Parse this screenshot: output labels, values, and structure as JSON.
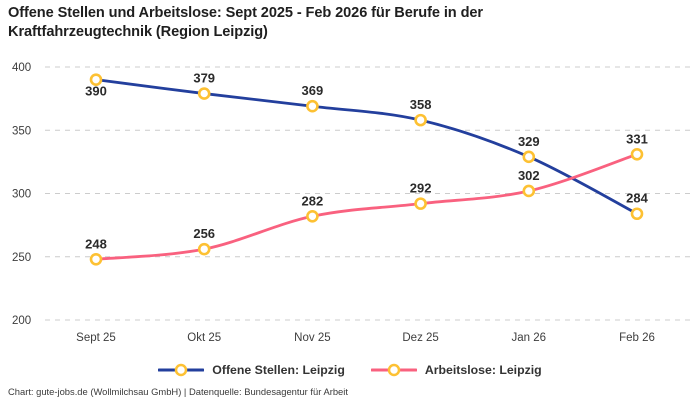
{
  "header": {
    "title": "Offene Stellen und Arbeitslose: Sept 2025 - Feb 2026 für Berufe in der Kraftfahrzeugtechnik (Region Leipzig)"
  },
  "footer": {
    "text": "Chart: gute-jobs.de (Wollmilchsau GmbH) | Datenquelle: Bundesagentur für Arbeit"
  },
  "legend": {
    "items": [
      {
        "label": "Offene Stellen: Leipzig",
        "color": "#233f9d"
      },
      {
        "label": "Arbeitslose: Leipzig",
        "color": "#f9617f"
      }
    ]
  },
  "chart_data": {
    "type": "line",
    "title": "Offene Stellen und Arbeitslose: Sept 2025 - Feb 2026 für Berufe in der Kraftfahrzeugtechnik (Region Leipzig)",
    "categories": [
      "Sept 25",
      "Okt 25",
      "Nov 25",
      "Dez 25",
      "Jan 26",
      "Feb 26"
    ],
    "series": [
      {
        "name": "Offene Stellen: Leipzig",
        "color": "#233f9d",
        "values": [
          390,
          379,
          369,
          358,
          329,
          284
        ],
        "label_positions": [
          "below",
          "above",
          "above",
          "above",
          "above",
          "above"
        ]
      },
      {
        "name": "Arbeitslose: Leipzig",
        "color": "#f9617f",
        "values": [
          248,
          256,
          282,
          292,
          302,
          331
        ],
        "label_positions": [
          "above",
          "above",
          "above",
          "above",
          "above",
          "above"
        ]
      }
    ],
    "marker": {
      "stroke": "#fdc133",
      "fill": "#ffffff"
    },
    "y_ticks": [
      200,
      250,
      300,
      350,
      400
    ],
    "ylim": [
      200,
      400
    ],
    "grid": "horizontal-dashed",
    "grid_color": "#cccccc",
    "tick_label_color": "#3d3d3d",
    "data_label_color": "#2b2b2b",
    "legend_position": "bottom",
    "smooth": true
  }
}
